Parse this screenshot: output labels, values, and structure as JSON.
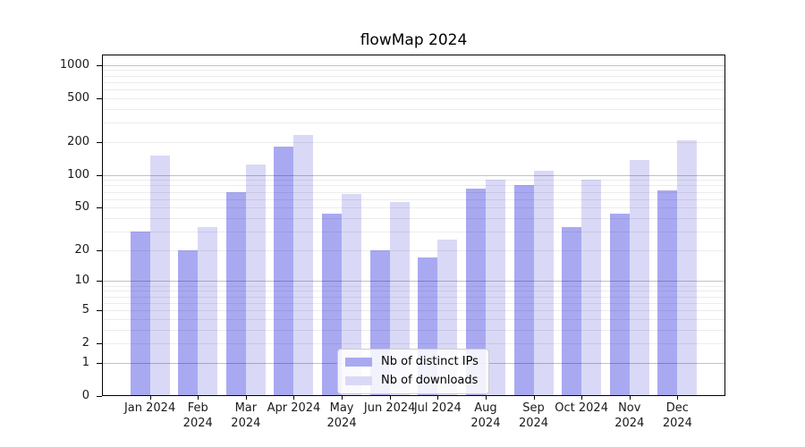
{
  "chart_data": {
    "type": "bar",
    "title": "flowMap 2024",
    "categories": [
      "Jan 2024",
      "Feb 2024",
      "Mar 2024",
      "Apr 2024",
      "May 2024",
      "Jun 2024",
      "Jul 2024",
      "Aug 2024",
      "Sep 2024",
      "Oct 2024",
      "Nov 2024",
      "Dec 2024"
    ],
    "series": [
      {
        "name": "Nb of distinct IPs",
        "color": "#a9a9f2",
        "values": [
          30,
          20,
          70,
          180,
          44,
          20,
          17,
          75,
          80,
          33,
          44,
          72
        ]
      },
      {
        "name": "Nb of downloads",
        "color": "#d9d9f7",
        "values": [
          150,
          33,
          125,
          230,
          67,
          56,
          25,
          90,
          110,
          91,
          137,
          205
        ]
      }
    ],
    "yscale": "log1p",
    "yticks": [
      0,
      1,
      2,
      5,
      10,
      20,
      50,
      100,
      200,
      500,
      1000
    ],
    "ylim": [
      0,
      1250
    ],
    "xlabel": "",
    "ylabel": "",
    "grid": true,
    "legend_position": "lower center",
    "colors": {
      "major_grid": "#c1c1c1",
      "minor_grid": "#ececec",
      "axis": "#000000",
      "text": "#1a1a1a"
    }
  }
}
